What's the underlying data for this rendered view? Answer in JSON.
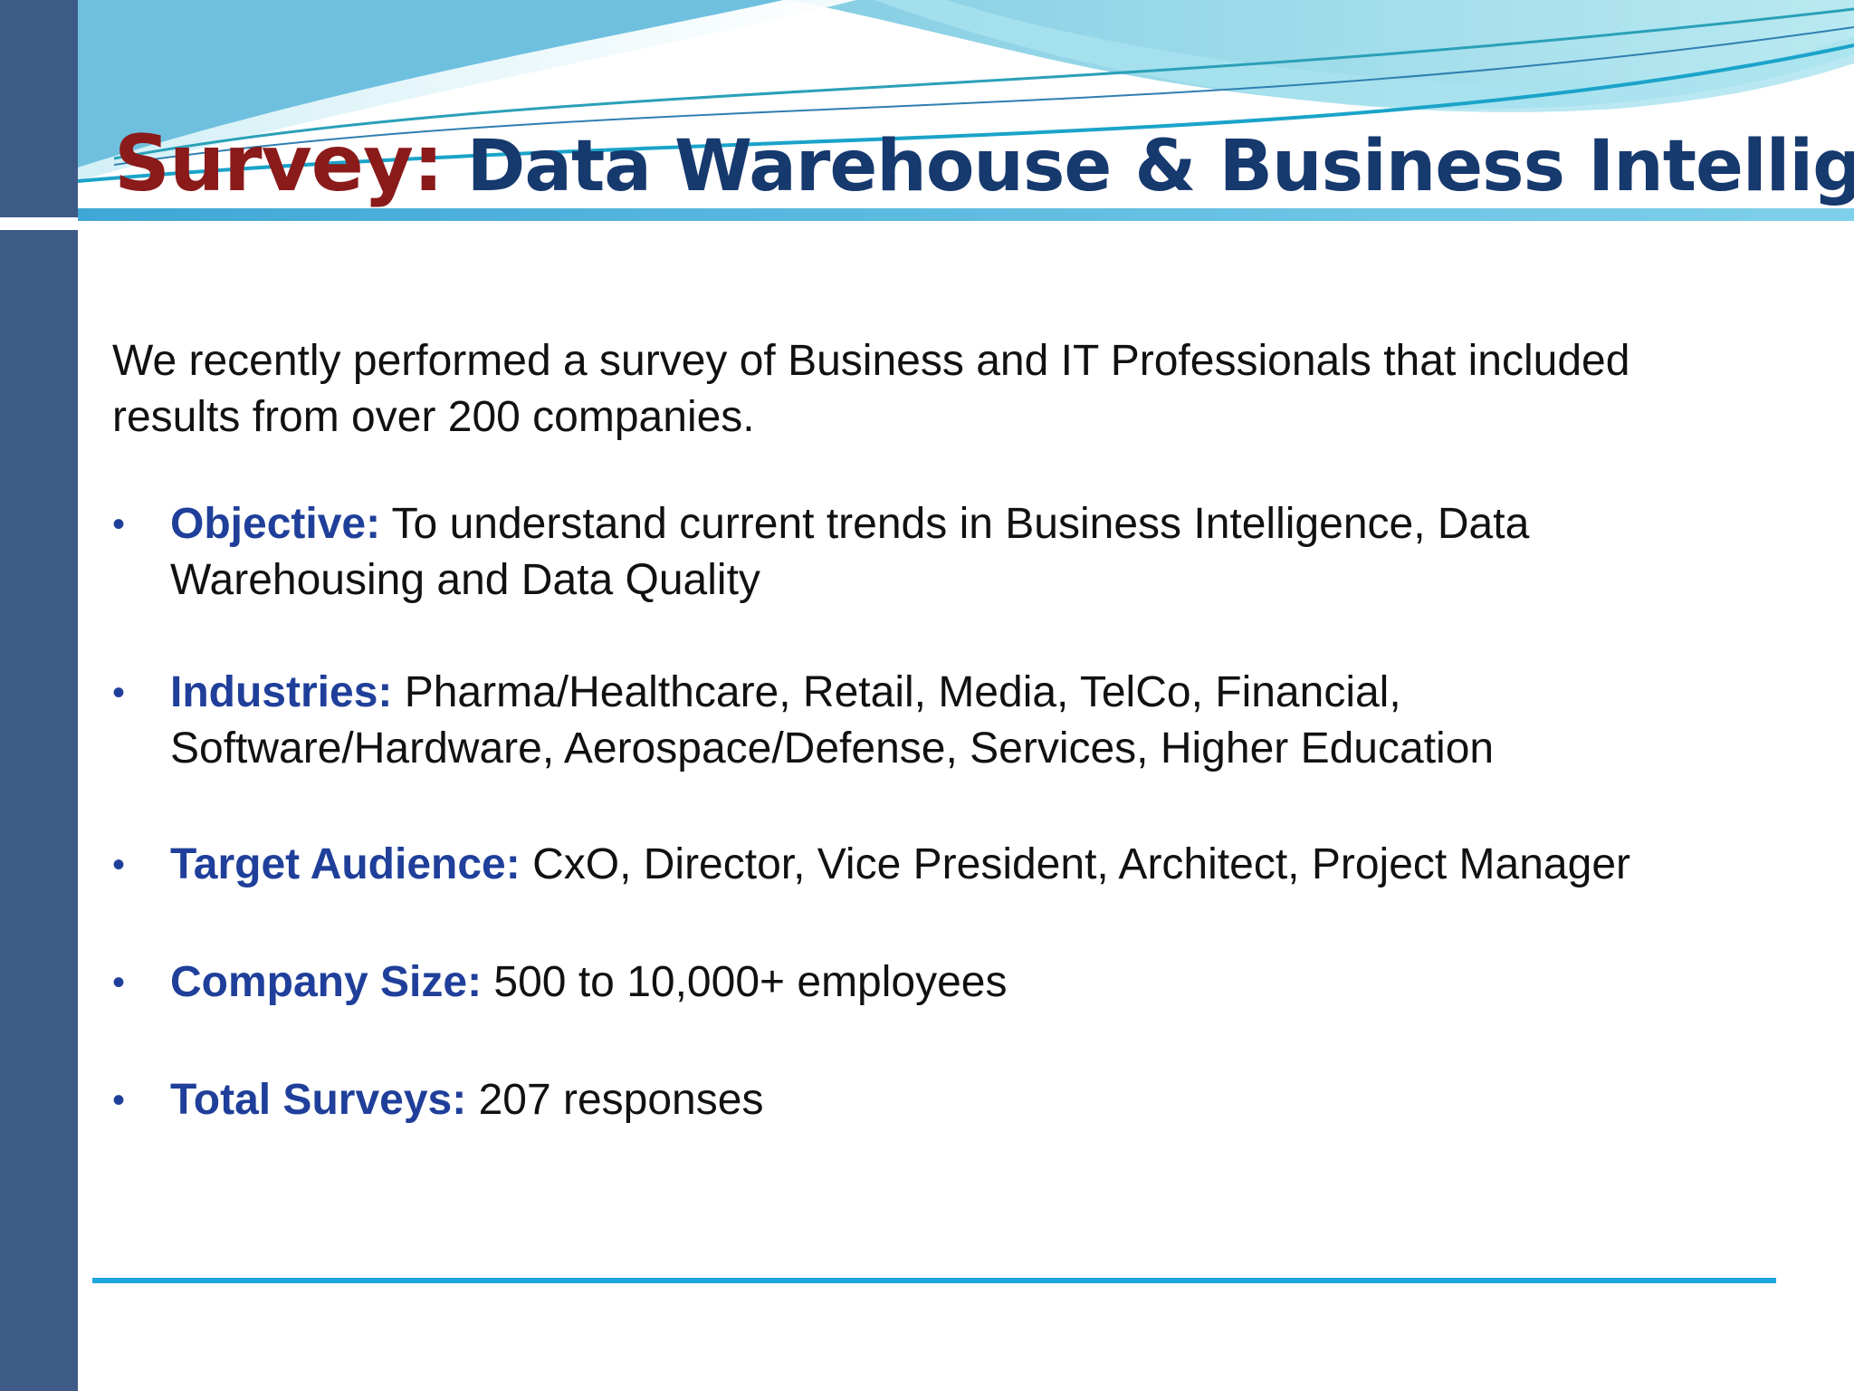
{
  "title": {
    "accent": "Survey:",
    "main": "Data Warehouse & Business Intelligence"
  },
  "intro": "We recently performed a survey of Business and IT Professionals that included results from over 200 companies.",
  "bullets": [
    {
      "label": "Objective:",
      "text": "To understand current trends in Business Intelligence, Data Warehousing and Data Quality"
    },
    {
      "label": "Industries:",
      "text": "Pharma/Healthcare, Retail, Media, TelCo, Financial, Software/Hardware, Aerospace/Defense, Services, Higher Education"
    },
    {
      "label": "Target Audience:",
      "text": "CxO, Director, Vice President, Architect, Project Manager"
    },
    {
      "label": "Company Size:",
      "text": "500 to 10,000+ employees"
    },
    {
      "label": "Total Surveys:",
      "text": "207 responses"
    }
  ],
  "bullet_glyph": "•",
  "colors": {
    "sidebar": "#3e5a87",
    "title_accent": "#8b1a1a",
    "title_main": "#16396e",
    "bullet_label": "#1f3f9a",
    "rule": "#1fa6df"
  }
}
